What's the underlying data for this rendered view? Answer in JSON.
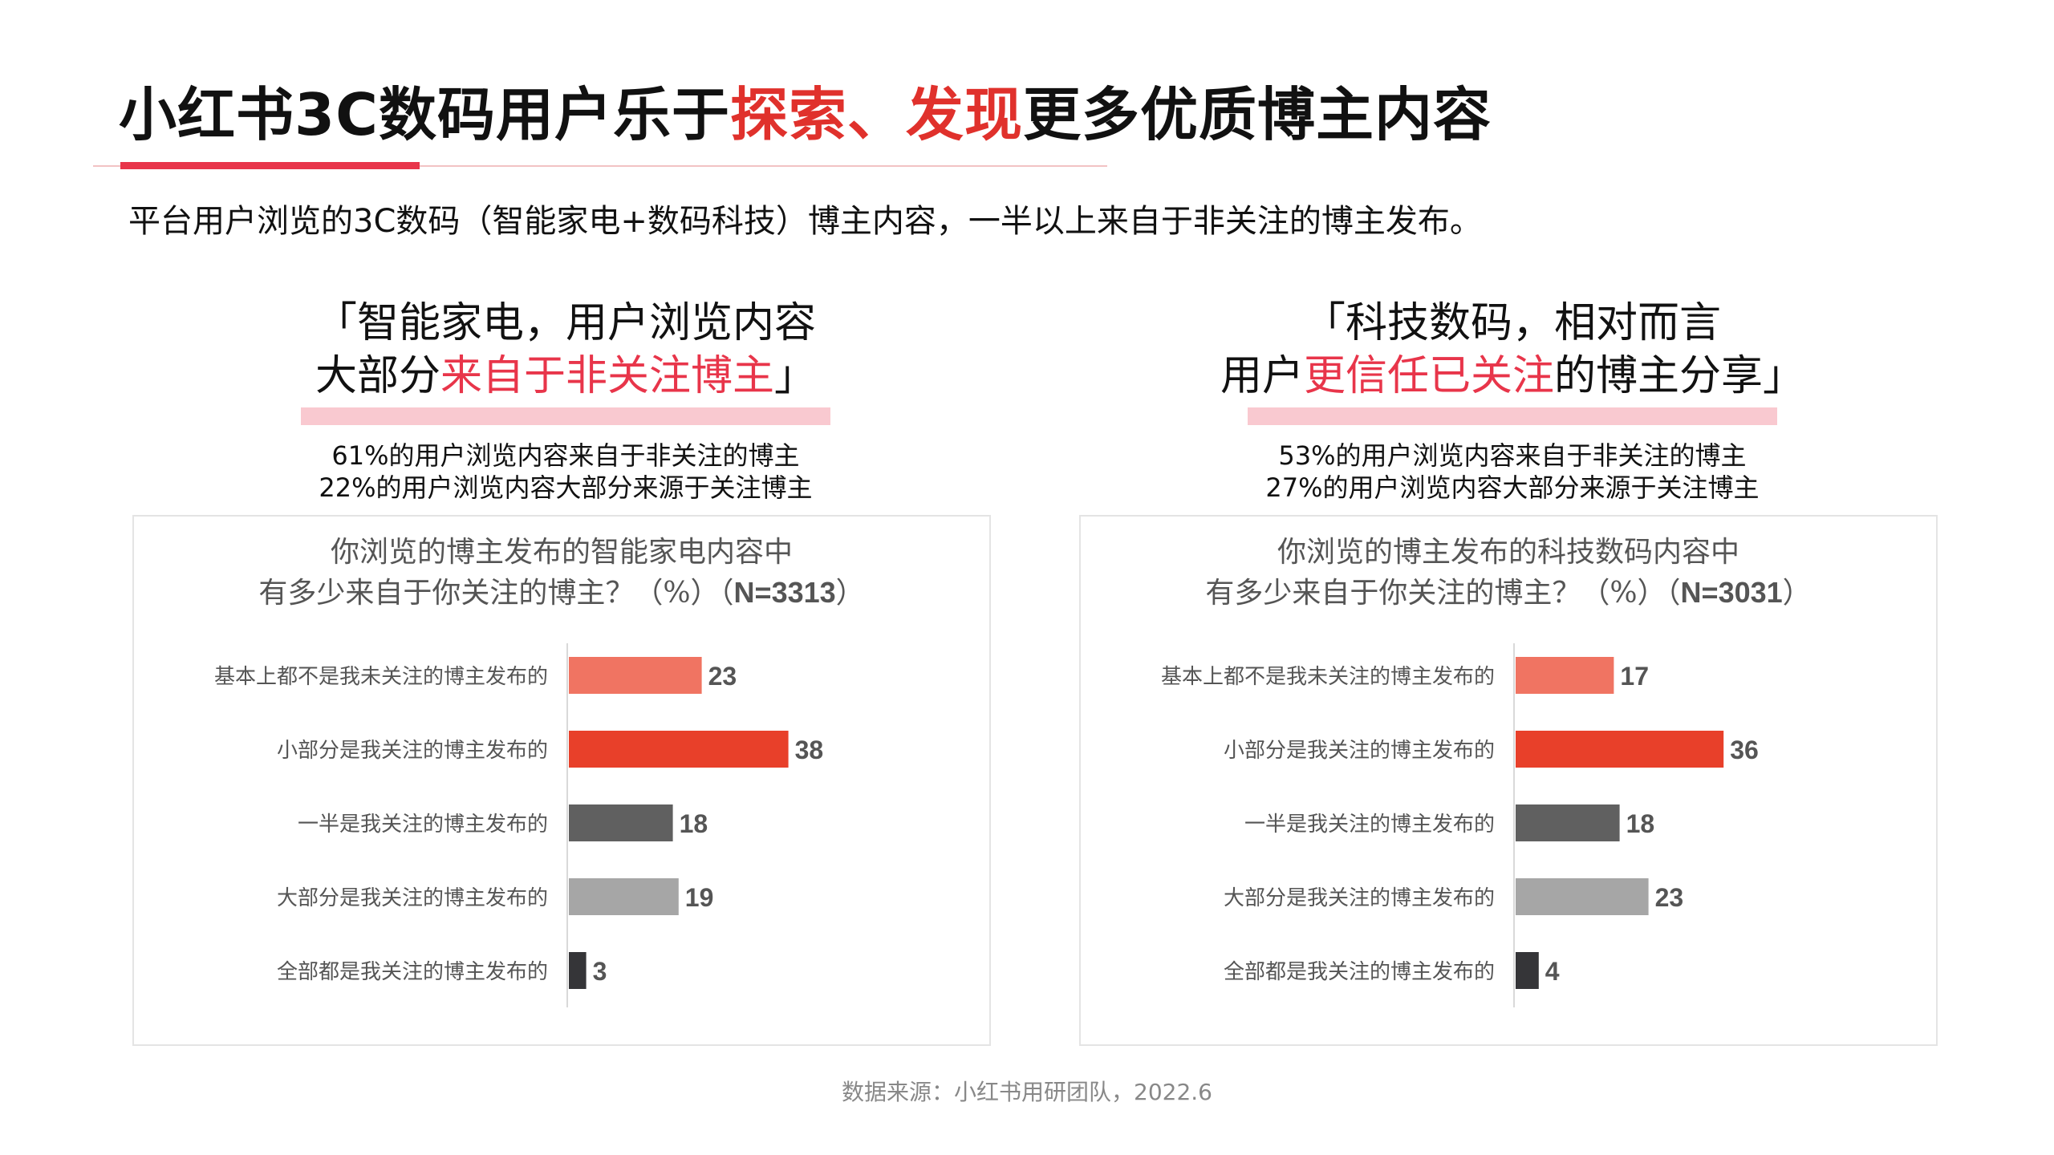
{
  "title": {
    "part1": "小红书3C数码用户乐于",
    "highlight": "探索、发现",
    "part2": "更多优质博主内容"
  },
  "subtitle": "平台用户浏览的3C数码（智能家电+数码科技）博主内容，一半以上来自于非关注的博主发布。",
  "source": "数据来源：小红书用研团队，2022.6",
  "colors": {
    "accent": "#e0312c",
    "bar_colors": [
      "#f07462",
      "#e8402a",
      "#606060",
      "#a6a6a6",
      "#353538"
    ]
  },
  "panels": [
    {
      "quote_line1": "「智能家电，用户浏览内容",
      "quote_line2_plain": "大部分",
      "quote_line2_highlight": "来自于非关注博主",
      "quote_line2_end": "」",
      "stat1": "61%的用户浏览内容来自于非关注的博主",
      "stat2": "22%的用户浏览内容大部分来源于关注博主",
      "chart_title_line1": "你浏览的博主发布的智能家电内容中",
      "chart_title_line2_pre": "有多少来自于你关注的博主？（%）（",
      "chart_title_line2_n": "N=3313",
      "chart_title_line2_post": "）"
    },
    {
      "quote_line1": "「科技数码，相对而言",
      "quote_line2_plain": "用户",
      "quote_line2_highlight": "更信任已关注",
      "quote_line2_end": "的博主分享」",
      "stat1": "53%的用户浏览内容来自于非关注的博主",
      "stat2": "27%的用户浏览内容大部分来源于关注博主",
      "chart_title_line1": "你浏览的博主发布的科技数码内容中",
      "chart_title_line2_pre": "有多少来自于你关注的博主？（%）（",
      "chart_title_line2_n": "N=3031",
      "chart_title_line2_post": "）"
    }
  ],
  "chart_data": [
    {
      "type": "bar",
      "orientation": "horizontal",
      "title": "你浏览的博主发布的智能家电内容中 有多少来自于你关注的博主？（%）（N=3313）",
      "categories": [
        "基本上都不是我未关注的博主发布的",
        "小部分是我关注的博主发布的",
        "一半是我关注的博主发布的",
        "大部分是我关注的博主发布的",
        "全部都是我关注的博主发布的"
      ],
      "values": [
        23,
        38,
        18,
        19,
        3
      ],
      "xlim": [
        0,
        40
      ],
      "grid": false
    },
    {
      "type": "bar",
      "orientation": "horizontal",
      "title": "你浏览的博主发布的科技数码内容中 有多少来自于你关注的博主？（%）（N=3031）",
      "categories": [
        "基本上都不是我未关注的博主发布的",
        "小部分是我关注的博主发布的",
        "一半是我关注的博主发布的",
        "大部分是我关注的博主发布的",
        "全部都是我关注的博主发布的"
      ],
      "values": [
        17,
        36,
        18,
        23,
        4
      ],
      "xlim": [
        0,
        40
      ],
      "grid": false
    }
  ]
}
